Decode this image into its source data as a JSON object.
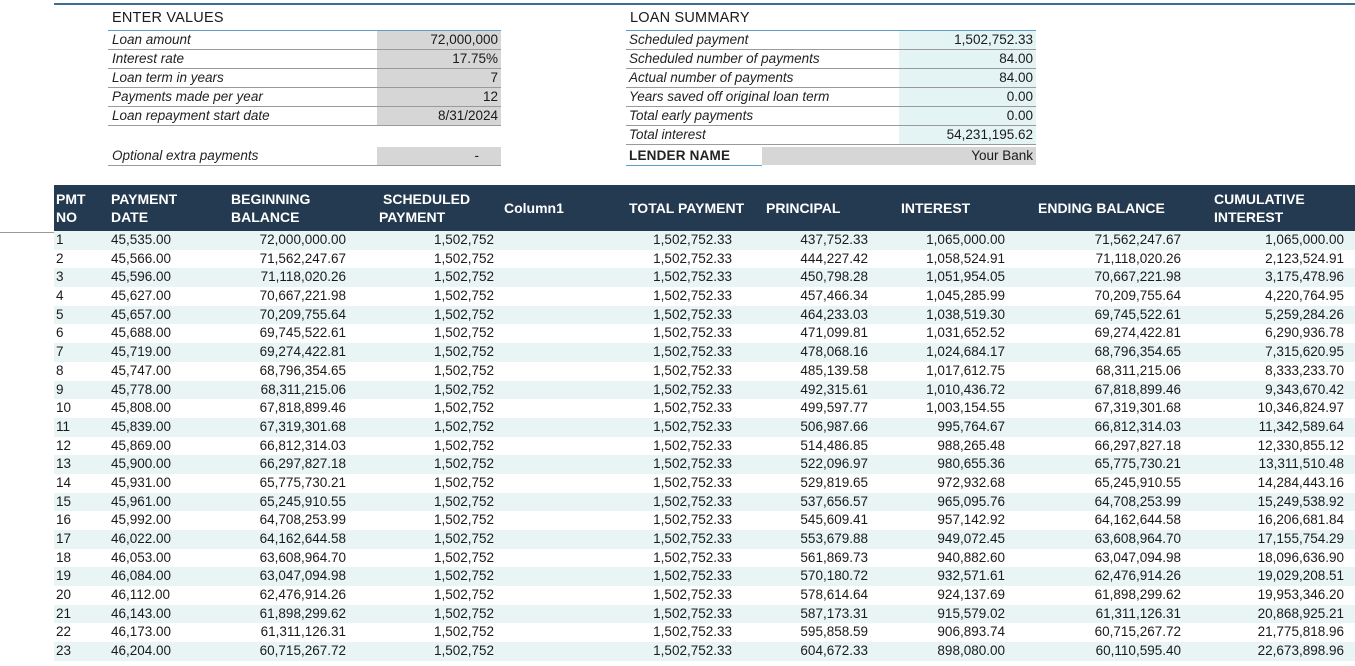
{
  "enter_values": {
    "title": "ENTER VALUES",
    "rows": [
      {
        "label": "Loan amount",
        "value": "72,000,000"
      },
      {
        "label": "Interest rate",
        "value": "17.75%"
      },
      {
        "label": "Loan term in years",
        "value": "7"
      },
      {
        "label": "Payments made per year",
        "value": "12"
      },
      {
        "label": "Loan repayment start date",
        "value": "8/31/2024"
      }
    ],
    "optional_label": "Optional extra payments",
    "optional_value": "-"
  },
  "loan_summary": {
    "title": "LOAN SUMMARY",
    "rows": [
      {
        "label": "Scheduled payment",
        "value": "1,502,752.33"
      },
      {
        "label": "Scheduled number of payments",
        "value": "84.00"
      },
      {
        "label": "Actual number of payments",
        "value": "84.00"
      },
      {
        "label": "Years saved off original loan term",
        "value": "0.00"
      },
      {
        "label": "Total early payments",
        "value": "0.00"
      },
      {
        "label": "Total interest",
        "value": "54,231,195.62"
      }
    ],
    "lender_label": "LENDER NAME",
    "lender_value": "Your Bank"
  },
  "schedule": {
    "headers": {
      "pmt_no_1": "PMT",
      "pmt_no_2": "NO",
      "date_1": "PAYMENT",
      "date_2": "DATE",
      "begin_1": "BEGINNING",
      "begin_2": "BALANCE",
      "sched_1": "SCHEDULED",
      "sched_2": "PAYMENT",
      "column1": "Column1",
      "total": "TOTAL PAYMENT",
      "principal": "PRINCIPAL",
      "interest": "INTEREST",
      "ending": "ENDING BALANCE",
      "cum_1": "CUMULATIVE",
      "cum_2": "INTEREST"
    },
    "rows": [
      [
        "1",
        "45,535.00",
        "72,000,000.00",
        "1,502,752",
        "1,502,752.33",
        "437,752.33",
        "1,065,000.00",
        "71,562,247.67",
        "1,065,000.00"
      ],
      [
        "2",
        "45,566.00",
        "71,562,247.67",
        "1,502,752",
        "1,502,752.33",
        "444,227.42",
        "1,058,524.91",
        "71,118,020.26",
        "2,123,524.91"
      ],
      [
        "3",
        "45,596.00",
        "71,118,020.26",
        "1,502,752",
        "1,502,752.33",
        "450,798.28",
        "1,051,954.05",
        "70,667,221.98",
        "3,175,478.96"
      ],
      [
        "4",
        "45,627.00",
        "70,667,221.98",
        "1,502,752",
        "1,502,752.33",
        "457,466.34",
        "1,045,285.99",
        "70,209,755.64",
        "4,220,764.95"
      ],
      [
        "5",
        "45,657.00",
        "70,209,755.64",
        "1,502,752",
        "1,502,752.33",
        "464,233.03",
        "1,038,519.30",
        "69,745,522.61",
        "5,259,284.26"
      ],
      [
        "6",
        "45,688.00",
        "69,745,522.61",
        "1,502,752",
        "1,502,752.33",
        "471,099.81",
        "1,031,652.52",
        "69,274,422.81",
        "6,290,936.78"
      ],
      [
        "7",
        "45,719.00",
        "69,274,422.81",
        "1,502,752",
        "1,502,752.33",
        "478,068.16",
        "1,024,684.17",
        "68,796,354.65",
        "7,315,620.95"
      ],
      [
        "8",
        "45,747.00",
        "68,796,354.65",
        "1,502,752",
        "1,502,752.33",
        "485,139.58",
        "1,017,612.75",
        "68,311,215.06",
        "8,333,233.70"
      ],
      [
        "9",
        "45,778.00",
        "68,311,215.06",
        "1,502,752",
        "1,502,752.33",
        "492,315.61",
        "1,010,436.72",
        "67,818,899.46",
        "9,343,670.42"
      ],
      [
        "10",
        "45,808.00",
        "67,818,899.46",
        "1,502,752",
        "1,502,752.33",
        "499,597.77",
        "1,003,154.55",
        "67,319,301.68",
        "10,346,824.97"
      ],
      [
        "11",
        "45,839.00",
        "67,319,301.68",
        "1,502,752",
        "1,502,752.33",
        "506,987.66",
        "995,764.67",
        "66,812,314.03",
        "11,342,589.64"
      ],
      [
        "12",
        "45,869.00",
        "66,812,314.03",
        "1,502,752",
        "1,502,752.33",
        "514,486.85",
        "988,265.48",
        "66,297,827.18",
        "12,330,855.12"
      ],
      [
        "13",
        "45,900.00",
        "66,297,827.18",
        "1,502,752",
        "1,502,752.33",
        "522,096.97",
        "980,655.36",
        "65,775,730.21",
        "13,311,510.48"
      ],
      [
        "14",
        "45,931.00",
        "65,775,730.21",
        "1,502,752",
        "1,502,752.33",
        "529,819.65",
        "972,932.68",
        "65,245,910.55",
        "14,284,443.16"
      ],
      [
        "15",
        "45,961.00",
        "65,245,910.55",
        "1,502,752",
        "1,502,752.33",
        "537,656.57",
        "965,095.76",
        "64,708,253.99",
        "15,249,538.92"
      ],
      [
        "16",
        "45,992.00",
        "64,708,253.99",
        "1,502,752",
        "1,502,752.33",
        "545,609.41",
        "957,142.92",
        "64,162,644.58",
        "16,206,681.84"
      ],
      [
        "17",
        "46,022.00",
        "64,162,644.58",
        "1,502,752",
        "1,502,752.33",
        "553,679.88",
        "949,072.45",
        "63,608,964.70",
        "17,155,754.29"
      ],
      [
        "18",
        "46,053.00",
        "63,608,964.70",
        "1,502,752",
        "1,502,752.33",
        "561,869.73",
        "940,882.60",
        "63,047,094.98",
        "18,096,636.90"
      ],
      [
        "19",
        "46,084.00",
        "63,047,094.98",
        "1,502,752",
        "1,502,752.33",
        "570,180.72",
        "932,571.61",
        "62,476,914.26",
        "19,029,208.51"
      ],
      [
        "20",
        "46,112.00",
        "62,476,914.26",
        "1,502,752",
        "1,502,752.33",
        "578,614.64",
        "924,137.69",
        "61,898,299.62",
        "19,953,346.20"
      ],
      [
        "21",
        "46,143.00",
        "61,898,299.62",
        "1,502,752",
        "1,502,752.33",
        "587,173.31",
        "915,579.02",
        "61,311,126.31",
        "20,868,925.21"
      ],
      [
        "22",
        "46,173.00",
        "61,311,126.31",
        "1,502,752",
        "1,502,752.33",
        "595,858.59",
        "906,893.74",
        "60,715,267.72",
        "21,775,818.96"
      ],
      [
        "23",
        "46,204.00",
        "60,715,267.72",
        "1,502,752",
        "1,502,752.33",
        "604,672.33",
        "898,080.00",
        "60,110,595.40",
        "22,673,898.96"
      ]
    ]
  }
}
